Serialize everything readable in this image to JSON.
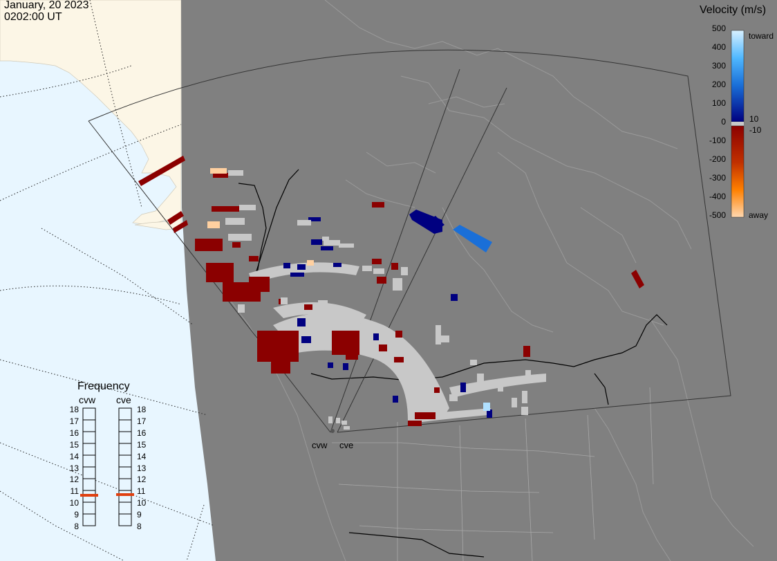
{
  "header": {
    "date": "January, 20 2023",
    "time": "0202:00 UT"
  },
  "colors": {
    "ocean": "#e8f6ff",
    "land_sunlit": "#fcf6e6",
    "night_shade": "#808080",
    "ground_scatter": "#c8c8c8",
    "boundary": "#000000",
    "toward_strong": "#b0e0ff",
    "toward_mid": "#1a6fd8",
    "toward_weak": "#000080",
    "away_weak": "#8b0000",
    "away_mid": "#e05000",
    "away_strong": "#ffd0a0",
    "freq_marker": "#e04010"
  },
  "legend": {
    "title": "Velocity (m/s)",
    "ticks": [
      "500",
      "400",
      "300",
      "200",
      "100",
      "0",
      "-100",
      "-200",
      "-300",
      "-400",
      "-500"
    ],
    "threshold_pos": "10",
    "threshold_neg": "-10",
    "toward_label": "toward",
    "away_label": "away"
  },
  "frequency": {
    "title": "Frequency",
    "ticks": [
      "18",
      "17",
      "16",
      "15",
      "14",
      "13",
      "12",
      "11",
      "10",
      "9",
      "8"
    ],
    "radars": [
      {
        "name": "cvw",
        "value_mhz": 10.7
      },
      {
        "name": "cve",
        "value_mhz": 10.8
      }
    ]
  },
  "map_labels": {
    "radar_west": "cvw",
    "radar_east": "cve"
  }
}
